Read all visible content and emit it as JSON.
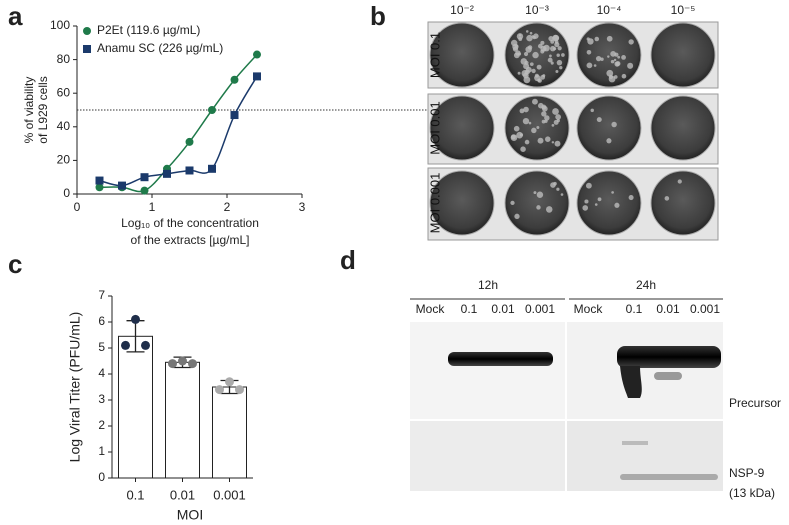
{
  "panel_labels": [
    "a",
    "b",
    "c",
    "d"
  ],
  "chart_data": [
    {
      "type": "scatter",
      "legend_position": "upper left",
      "xlabel": [
        "Log₁₀ of the concentration",
        "of the extracts [µg/mL]"
      ],
      "ylabel": [
        "% of viability",
        "of L929 cells"
      ],
      "xlim": [
        0,
        3
      ],
      "xticks": [
        0,
        1,
        2,
        3
      ],
      "ylim": [
        0,
        100
      ],
      "yticks": [
        0,
        20,
        40,
        60,
        80,
        100
      ],
      "threshold": 50,
      "series": [
        {
          "name": "P2Et (119.6 µg/mL)",
          "color": "#1f7a4a",
          "marker": "circle",
          "x": [
            0.3,
            0.6,
            0.9,
            1.2,
            1.5,
            1.8,
            2.1,
            2.4
          ],
          "values": [
            4,
            4,
            2,
            15,
            31,
            50,
            68,
            83
          ]
        },
        {
          "name": "Anamu SC (226 µg/mL)",
          "color": "#1b3a6b",
          "marker": "square",
          "x": [
            0.3,
            0.6,
            0.9,
            1.2,
            1.5,
            1.8,
            2.1,
            2.4
          ],
          "values": [
            8,
            5,
            10,
            12,
            14,
            15,
            47,
            70
          ]
        }
      ]
    },
    {
      "type": "bar",
      "xlabel": "MOI",
      "ylabel": "Log Viral Titer (PFU/mL)",
      "categories": [
        "0.1",
        "0.01",
        "0.001"
      ],
      "values": [
        5.45,
        4.45,
        3.5
      ],
      "errors": [
        0.6,
        0.2,
        0.25
      ],
      "points": [
        [
          5.1,
          6.1,
          5.1
        ],
        [
          4.4,
          4.5,
          4.4
        ],
        [
          3.4,
          3.7,
          3.4
        ]
      ],
      "point_colors": [
        "#1f2e4a",
        "#777777",
        "#aaaaaa"
      ],
      "color": "#ffffff",
      "ylim": [
        0,
        7
      ],
      "yticks": [
        0,
        1,
        2,
        3,
        4,
        5,
        6,
        7
      ]
    }
  ],
  "plaque_assay": {
    "columns": [
      "10⁻²",
      "10⁻³",
      "10⁻⁴",
      "10⁻⁵"
    ],
    "rows": [
      "MOI 0.1",
      "MOI 0.01",
      "MOI 0.001"
    ]
  },
  "western_blot": {
    "groups": [
      "12h",
      "24h"
    ],
    "lanes": [
      "Mock",
      "0.1",
      "0.01",
      "0.001"
    ],
    "bands": [
      "Precursor",
      "NSP-9",
      "(13 kDa)"
    ]
  }
}
